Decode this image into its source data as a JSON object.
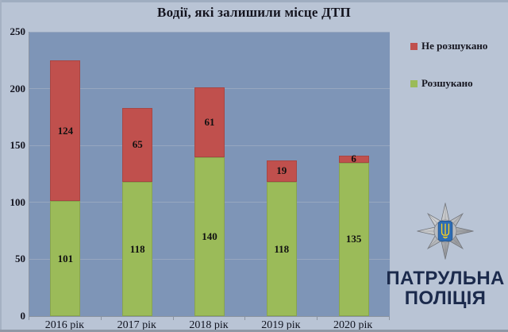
{
  "page": {
    "background_color": "#b9c4d5"
  },
  "chart_data": {
    "type": "bar",
    "stacked": true,
    "title": "Водії, які залишили місце ДТП",
    "categories": [
      "2016 рік",
      "2017 рік",
      "2018 рік",
      "2019 рік",
      "2020 рік"
    ],
    "series": [
      {
        "name": "Розшукано",
        "color": "#9bbb59",
        "values": [
          101,
          118,
          140,
          118,
          135
        ]
      },
      {
        "name": "Не розшукано",
        "color": "#c0504d",
        "values": [
          124,
          65,
          61,
          19,
          6
        ]
      }
    ],
    "totals": [
      225,
      183,
      201,
      137,
      141
    ],
    "ylim": [
      0,
      250
    ],
    "yticks": [
      0,
      50,
      100,
      150,
      200,
      250
    ],
    "grid": true,
    "legend_position": "right",
    "plot_background": "#7e95b7",
    "gridline_color": "#97a7bf",
    "value_labels": "inside-center"
  },
  "legend": {
    "items": [
      {
        "label": "Не розшукано",
        "color": "#c0504d"
      },
      {
        "label": "Розшукано",
        "color": "#9bbb59"
      }
    ]
  },
  "branding": {
    "org_line1": "ПАТРУЛЬНА",
    "org_line2": "ПОЛІЦІЯ",
    "logo": "patrol-police-badge",
    "text_color": "#1b2a4c",
    "badge_star_color": "#c9cacd",
    "badge_center_color": "#2e6db4",
    "badge_trident_color": "#ffd21e"
  }
}
